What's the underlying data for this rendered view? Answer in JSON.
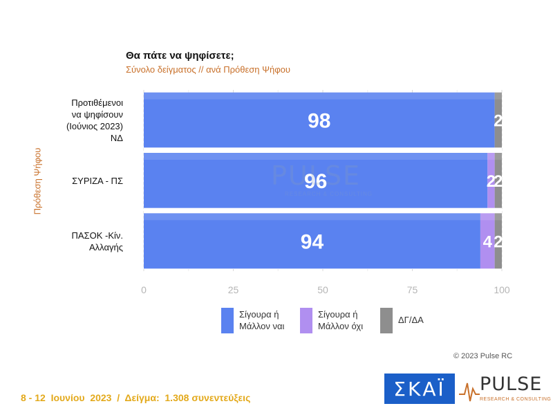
{
  "header": {
    "title": "Θα πάτε να ψηφίσετε;",
    "subtitle": "Σύνολο δείγματος // ανά Πρόθεση Ψήφου"
  },
  "chart_data": {
    "type": "bar",
    "orientation": "horizontal",
    "stacked": true,
    "title": "Θα πάτε να ψηφίσετε;",
    "subtitle": "Σύνολο δείγματος // ανά Πρόθεση Ψήφου",
    "ylabel": "Πρόθεση Ψήφου",
    "xlim": [
      0,
      100
    ],
    "xticks": [
      "0",
      "25",
      "50",
      "75",
      "100"
    ],
    "grid": true,
    "legend_position": "bottom",
    "categories": [
      [
        "Προτιθέμενοι",
        "να ψηφίσουν",
        "(Ιούνιος 2023)",
        "ΝΔ"
      ],
      [
        "ΣΥΡΙΖΑ - ΠΣ"
      ],
      [
        "ΠΑΣΟΚ -Κίν.",
        "Αλλαγής"
      ]
    ],
    "series": [
      {
        "name": "Σίγουρα ή Μάλλον ναι",
        "legend_lines": [
          "Σίγουρα ή",
          "Μάλλον ναι"
        ],
        "color": "#5a82f0",
        "values": [
          98,
          96,
          94
        ],
        "labels": [
          "98",
          "96",
          "94"
        ]
      },
      {
        "name": "Σίγουρα ή Μάλλον όχι",
        "legend_lines": [
          "Σίγουρα ή",
          "Μάλλον όχι"
        ],
        "color": "#b08ff0",
        "values": [
          0,
          2,
          4
        ],
        "labels": [
          "",
          "2",
          "4"
        ]
      },
      {
        "name": "ΔΓ/ΔΑ",
        "legend_lines": [
          "ΔΓ/ΔΑ"
        ],
        "color": "#8e8e8e",
        "values": [
          2,
          2,
          2
        ],
        "labels": [
          "2",
          "2",
          "2"
        ]
      }
    ]
  },
  "watermark": {
    "name": "PULSE",
    "tagline": "RESEARCH & CONSULTING"
  },
  "footer": {
    "copyright": "© 2023 Pulse RC",
    "date_sample": "8 - 12  Ιουνίου  2023  /  Δείγμα:  1.308 συνεντεύξεις"
  },
  "logos": {
    "skai": "ΣΚΑΪ",
    "pulse_name": "PULSE",
    "pulse_tagline": "RESEARCH & CONSULTING",
    "pulse_color": "#c8702a",
    "skai_color": "#1b5fc8"
  }
}
